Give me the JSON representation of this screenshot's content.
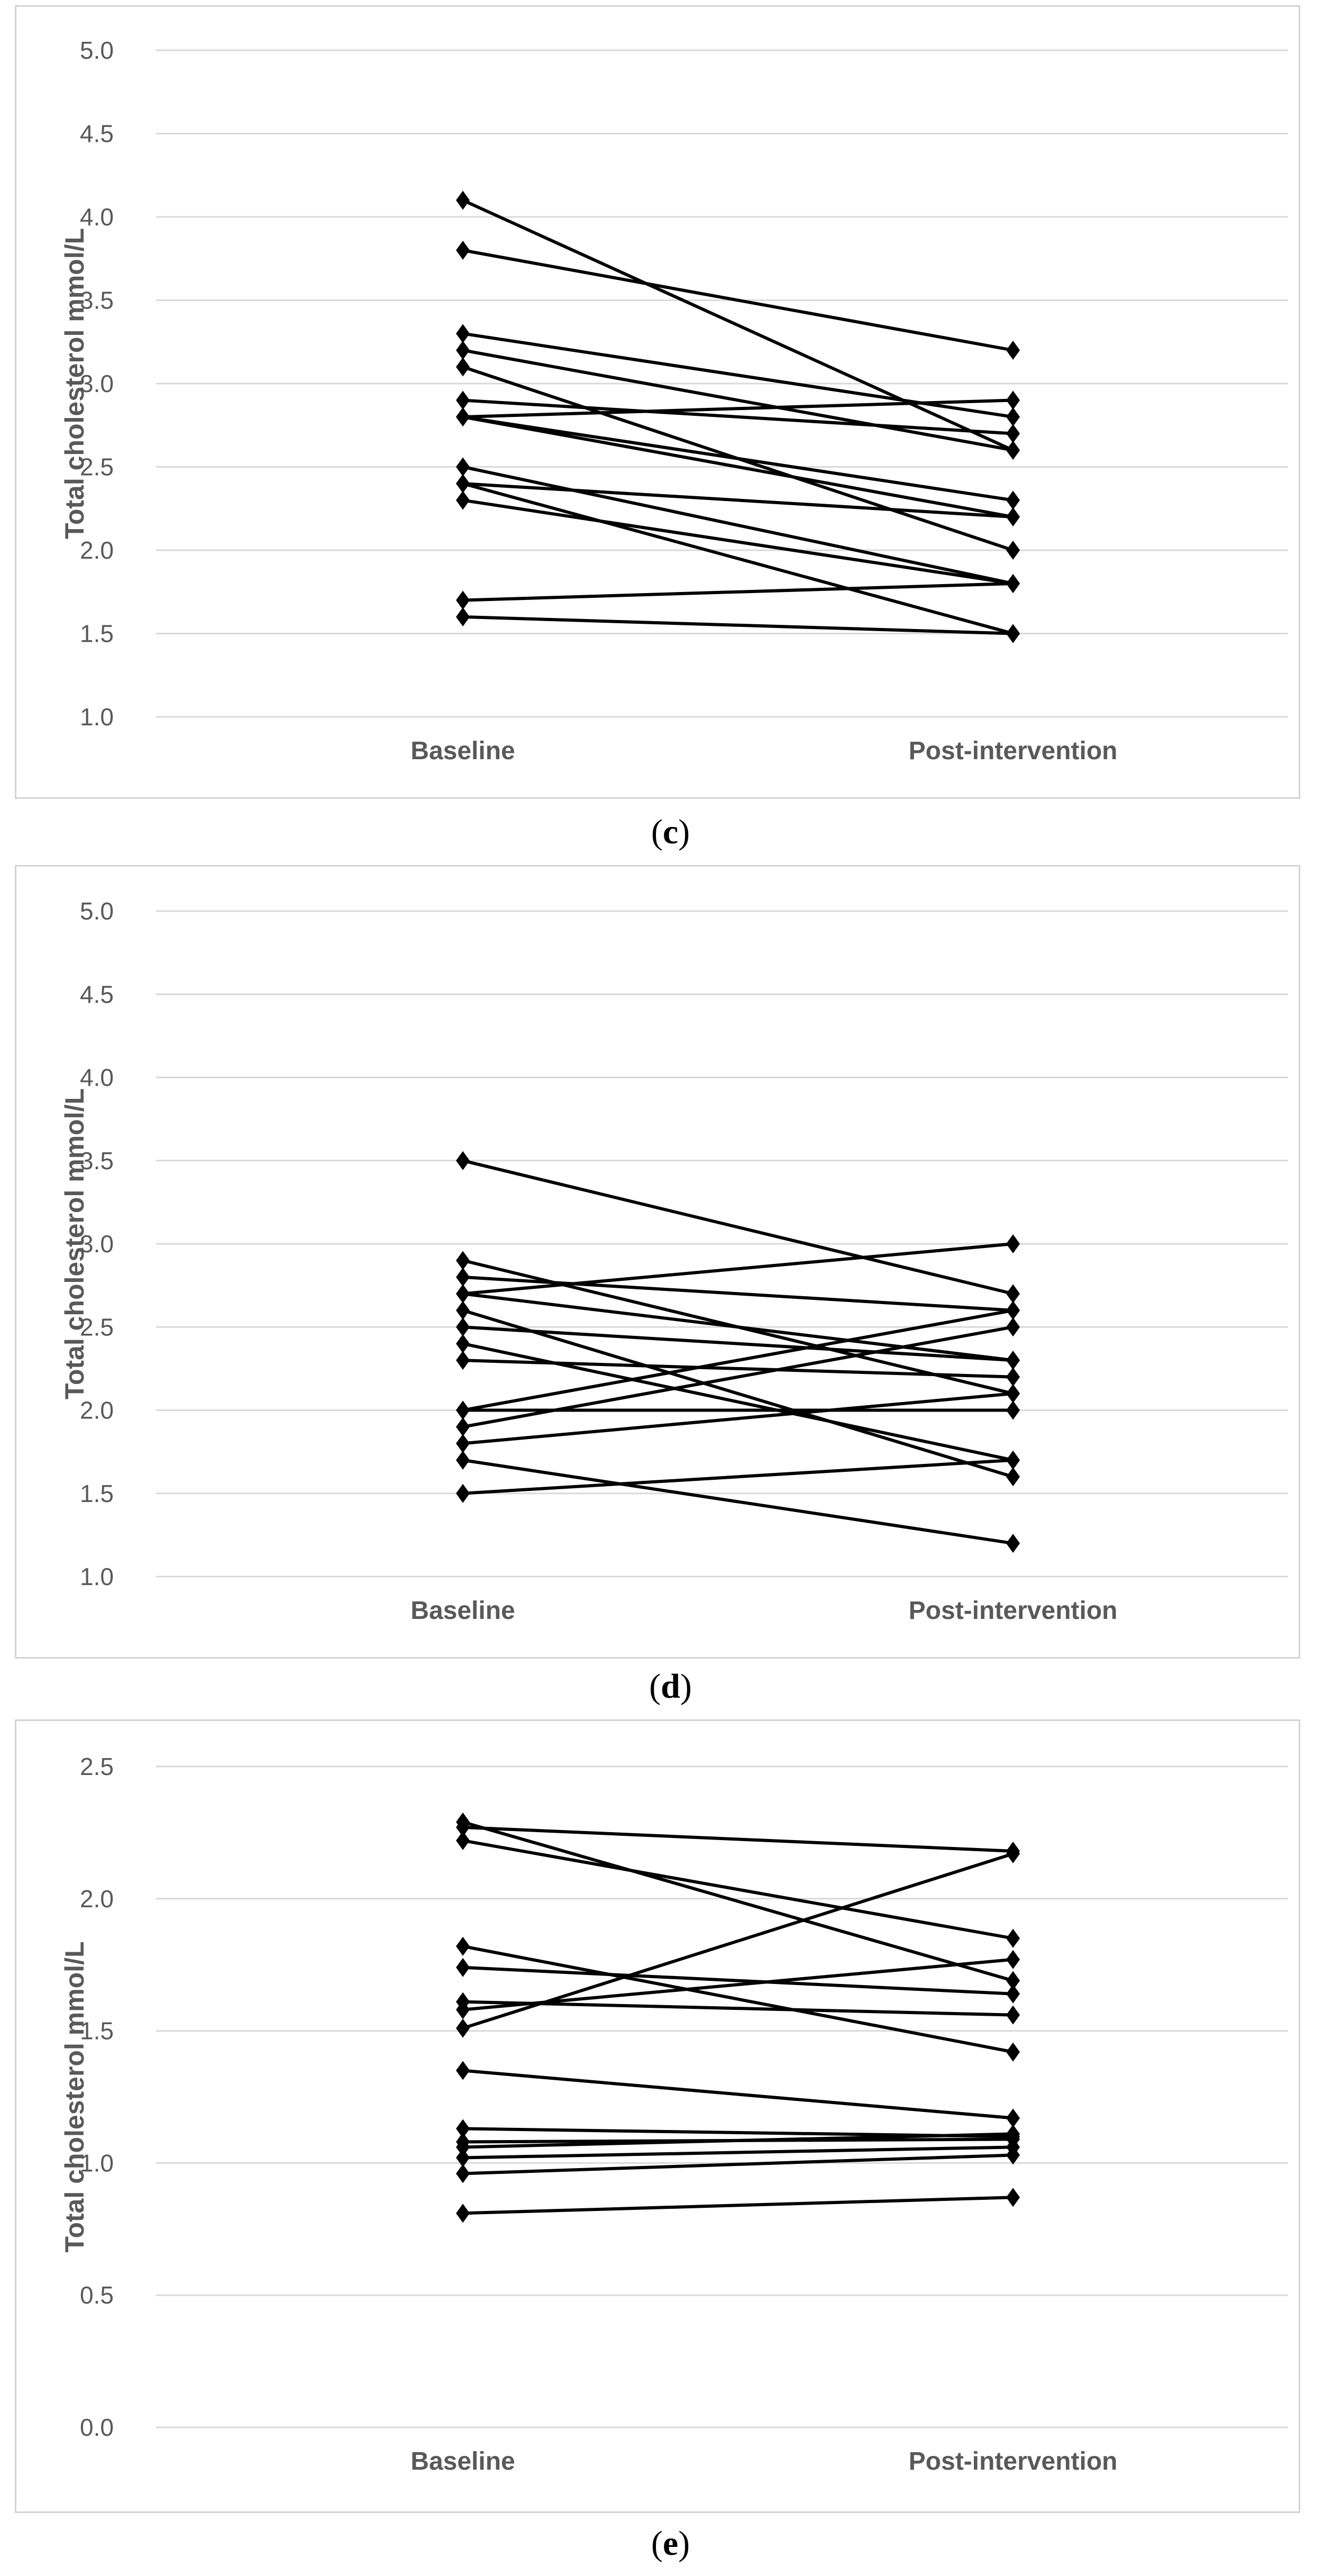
{
  "chart_data": [
    {
      "type": "line",
      "panel_label": "c",
      "ylabel": "Total cholesterol mmol/L",
      "categories": [
        "Baseline",
        "Post-intervention"
      ],
      "ylim": [
        1.0,
        5.0
      ],
      "ytick_step": 0.5,
      "ytick_decimals": 1,
      "grid": true,
      "marker": "diamond",
      "color": "#000000",
      "series": [
        {
          "values": [
            4.1,
            2.6
          ]
        },
        {
          "values": [
            3.8,
            3.2
          ]
        },
        {
          "values": [
            3.3,
            2.8
          ]
        },
        {
          "values": [
            3.2,
            2.6
          ]
        },
        {
          "values": [
            3.1,
            2.0
          ]
        },
        {
          "values": [
            2.9,
            2.7
          ]
        },
        {
          "values": [
            2.8,
            2.9
          ]
        },
        {
          "values": [
            2.8,
            2.2
          ]
        },
        {
          "values": [
            2.8,
            2.3
          ]
        },
        {
          "values": [
            2.5,
            1.8
          ]
        },
        {
          "values": [
            2.4,
            2.2
          ]
        },
        {
          "values": [
            2.4,
            1.5
          ]
        },
        {
          "values": [
            2.3,
            1.8
          ]
        },
        {
          "values": [
            1.7,
            1.8
          ]
        },
        {
          "values": [
            1.6,
            1.5
          ]
        }
      ]
    },
    {
      "type": "line",
      "panel_label": "d",
      "ylabel": "Total cholesterol mmol/L",
      "categories": [
        "Baseline",
        "Post-intervention"
      ],
      "ylim": [
        1.0,
        5.0
      ],
      "ytick_step": 0.5,
      "ytick_decimals": 1,
      "grid": true,
      "marker": "diamond",
      "color": "#000000",
      "series": [
        {
          "values": [
            3.5,
            2.7
          ]
        },
        {
          "values": [
            2.9,
            2.1
          ]
        },
        {
          "values": [
            2.8,
            2.6
          ]
        },
        {
          "values": [
            2.7,
            3.0
          ]
        },
        {
          "values": [
            2.7,
            2.3
          ]
        },
        {
          "values": [
            2.6,
            1.6
          ]
        },
        {
          "values": [
            2.5,
            2.3
          ]
        },
        {
          "values": [
            2.4,
            1.7
          ]
        },
        {
          "values": [
            2.3,
            2.2
          ]
        },
        {
          "values": [
            2.0,
            2.6
          ]
        },
        {
          "values": [
            2.0,
            2.0
          ]
        },
        {
          "values": [
            1.9,
            2.5
          ]
        },
        {
          "values": [
            1.8,
            2.1
          ]
        },
        {
          "values": [
            1.7,
            1.2
          ]
        },
        {
          "values": [
            1.5,
            1.7
          ]
        }
      ]
    },
    {
      "type": "line",
      "panel_label": "e",
      "ylabel": "Total cholesterol mmol/L",
      "categories": [
        "Baseline",
        "Post-intervention"
      ],
      "ylim": [
        0.0,
        2.5
      ],
      "ytick_step": 0.5,
      "ytick_decimals": 1,
      "grid": true,
      "marker": "diamond",
      "color": "#000000",
      "series": [
        {
          "values": [
            2.29,
            1.69
          ]
        },
        {
          "values": [
            2.27,
            2.18
          ]
        },
        {
          "values": [
            2.22,
            1.85
          ]
        },
        {
          "values": [
            1.82,
            1.42
          ]
        },
        {
          "values": [
            1.74,
            1.64
          ]
        },
        {
          "values": [
            1.61,
            1.56
          ]
        },
        {
          "values": [
            1.58,
            1.77
          ]
        },
        {
          "values": [
            1.51,
            2.17
          ]
        },
        {
          "values": [
            1.35,
            1.17
          ]
        },
        {
          "values": [
            1.13,
            1.1
          ]
        },
        {
          "values": [
            1.08,
            1.09
          ]
        },
        {
          "values": [
            1.06,
            1.11
          ]
        },
        {
          "values": [
            1.02,
            1.06
          ]
        },
        {
          "values": [
            0.96,
            1.03
          ]
        },
        {
          "values": [
            0.81,
            0.87
          ]
        }
      ]
    }
  ]
}
